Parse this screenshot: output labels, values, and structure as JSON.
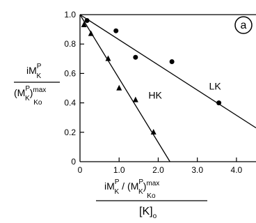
{
  "chart_data": {
    "type": "scatter",
    "panel_label": "a",
    "xlim": [
      0,
      4.5
    ],
    "ylim": [
      0,
      1.0
    ],
    "x_ticks": [
      0,
      1.0,
      2.0,
      3.0,
      4.0
    ],
    "x_tick_labels": [
      "0",
      "1.0",
      "2.0",
      "3.0",
      "4.0"
    ],
    "y_ticks": [
      0,
      0.2,
      0.4,
      0.6,
      0.8,
      1.0
    ],
    "y_tick_labels": [
      "0",
      "0.2",
      "0.4",
      "0.6",
      "0.8",
      "1.0"
    ],
    "ylabel": {
      "num_main": "i",
      "num_m": "M",
      "num_sup": "P",
      "num_sub": "K",
      "den_open": "(",
      "den_m": "M",
      "den_sup": "P",
      "den_sub": "K",
      "den_close": ")",
      "den_max": "max",
      "den_ko": "Ko"
    },
    "xlabel": {
      "num_main": "i",
      "num_m": "M",
      "num_sup": "P",
      "num_sub": "K",
      "slash": "/",
      "den_open": "(",
      "den_m": "M",
      "den_sup": "P",
      "den_sub": "K",
      "den_close": ")",
      "den_max": "max",
      "den_ko": "Ko",
      "bottom": "[K]",
      "bottom_sub": "o"
    },
    "series": [
      {
        "name": "LK",
        "marker": "circle",
        "points": [
          {
            "x": 0.18,
            "y": 0.96
          },
          {
            "x": 0.92,
            "y": 0.89
          },
          {
            "x": 1.42,
            "y": 0.71
          },
          {
            "x": 2.35,
            "y": 0.68
          },
          {
            "x": 3.55,
            "y": 0.4
          }
        ],
        "fit_line": [
          {
            "x": 0,
            "y": 1.0
          },
          {
            "x": 4.5,
            "y": 0.23
          }
        ],
        "label_pos": {
          "x": 3.3,
          "y": 0.49
        }
      },
      {
        "name": "HK",
        "marker": "triangle",
        "points": [
          {
            "x": 0.1,
            "y": 0.93
          },
          {
            "x": 0.28,
            "y": 0.87
          },
          {
            "x": 0.72,
            "y": 0.7
          },
          {
            "x": 1.0,
            "y": 0.5
          },
          {
            "x": 1.42,
            "y": 0.42
          },
          {
            "x": 1.88,
            "y": 0.2
          }
        ],
        "fit_line": [
          {
            "x": 0,
            "y": 1.0
          },
          {
            "x": 2.3,
            "y": 0.0
          }
        ],
        "label_pos": {
          "x": 1.75,
          "y": 0.43
        }
      }
    ]
  }
}
